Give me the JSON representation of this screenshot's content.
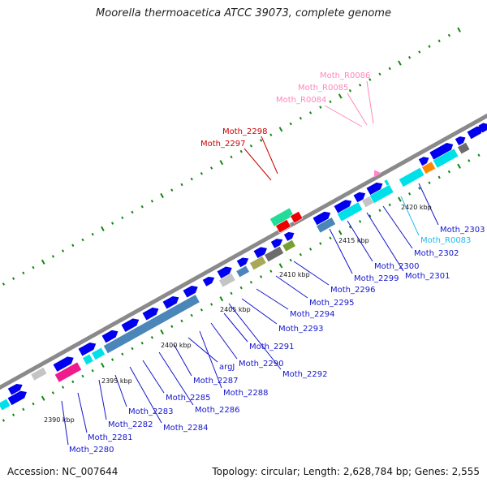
{
  "title": "Moorella thermoacetica ATCC 39073, complete genome",
  "footer": {
    "accession": "Accession: NC_007644",
    "summary": "Topology: circular; Length: 2,628,784 bp; Genes: 2,555"
  },
  "colors": {
    "backbone": "#8a8a8a",
    "cds": "#0000ee",
    "rna": "#00e0e8",
    "steelblue": "#4a86b8",
    "grey": "#c4c4c4",
    "darkgrey": "#6c6c6c",
    "olive": "#a8a85a",
    "green_box": "#77a030",
    "magenta": "#ee1c8c",
    "orange": "#ff8800",
    "red": "#ee0000",
    "mint": "#22dd99",
    "pink": "#ff88cc",
    "tickmark": "#118811",
    "label_blue": "#1515cc",
    "label_cyan": "#22bbee",
    "label_red": "#cc0000",
    "label_pink": "#ff88bb"
  },
  "ticks": [
    "2390 kbp",
    "2395 kbp",
    "2400 kbp",
    "2405 kbp",
    "2410 kbp",
    "2415 kbp",
    "2420 kbp"
  ],
  "labels_below": [
    "Moth_2280",
    "Moth_2281",
    "Moth_2282",
    "Moth_2283",
    "Moth_2284",
    "Moth_2285",
    "Moth_2286",
    "Moth_2287",
    "argJ",
    "Moth_2288",
    "Moth_2290",
    "Moth_2291",
    "Moth_2292",
    "Moth_2293",
    "Moth_2294",
    "Moth_2295",
    "Moth_2296",
    "Moth_2299",
    "Moth_2300",
    "Moth_2301",
    "Moth_2302",
    "Moth_R0083",
    "Moth_2303"
  ],
  "labels_above_red": [
    "Moth_2298",
    "Moth_2297"
  ],
  "labels_above_pink": [
    "Moth_R0086",
    "Moth_R0085",
    "Moth_R0084"
  ]
}
